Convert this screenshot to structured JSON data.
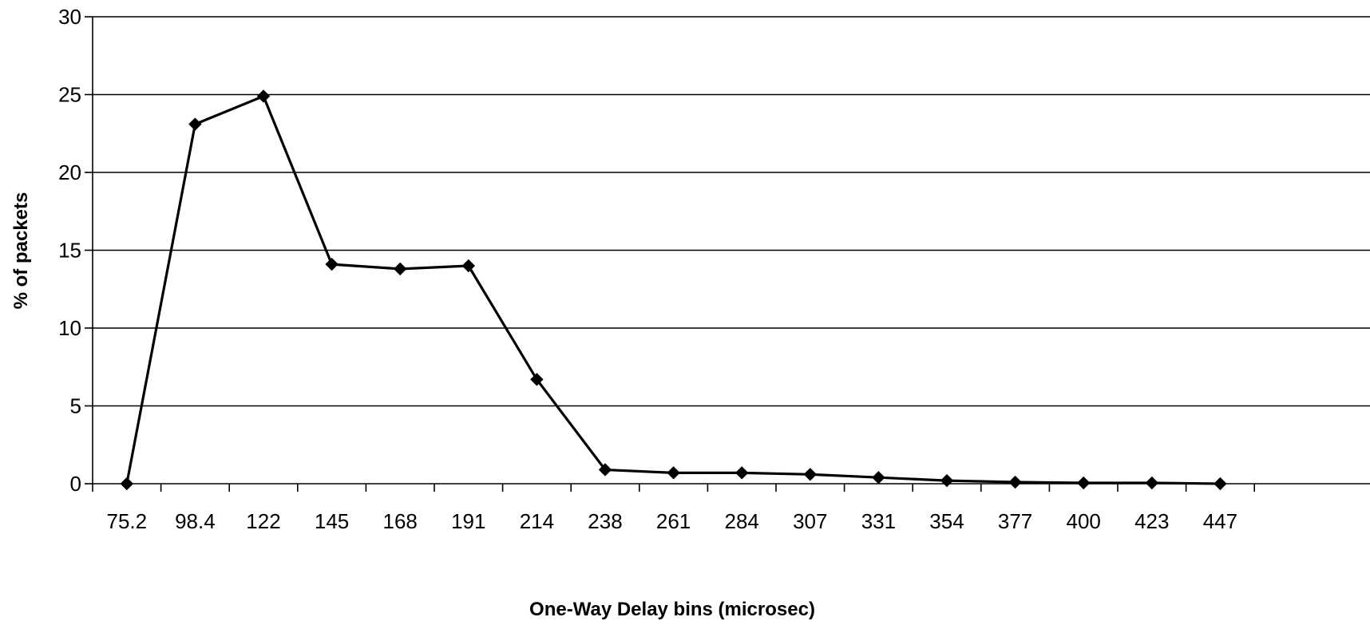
{
  "chart_data": {
    "type": "line",
    "title": "",
    "xlabel": "One-Way Delay bins (microsec)",
    "ylabel": "% of packets",
    "categories": [
      "75.2",
      "98.4",
      "122",
      "145",
      "168",
      "191",
      "214",
      "238",
      "261",
      "284",
      "307",
      "331",
      "354",
      "377",
      "400",
      "423",
      "447"
    ],
    "series": [
      {
        "values": [
          0,
          23.1,
          24.9,
          14.1,
          13.8,
          14.0,
          6.7,
          0.9,
          0.7,
          0.7,
          0.6,
          0.4,
          0.2,
          0.1,
          0.05,
          0.05,
          0.0
        ]
      }
    ],
    "yticks": [
      0,
      5,
      10,
      15,
      20,
      25,
      30
    ],
    "ylim": [
      0,
      30
    ],
    "grid": "horizontal",
    "legend": "none",
    "line_color": "#000000",
    "marker": "diamond"
  }
}
